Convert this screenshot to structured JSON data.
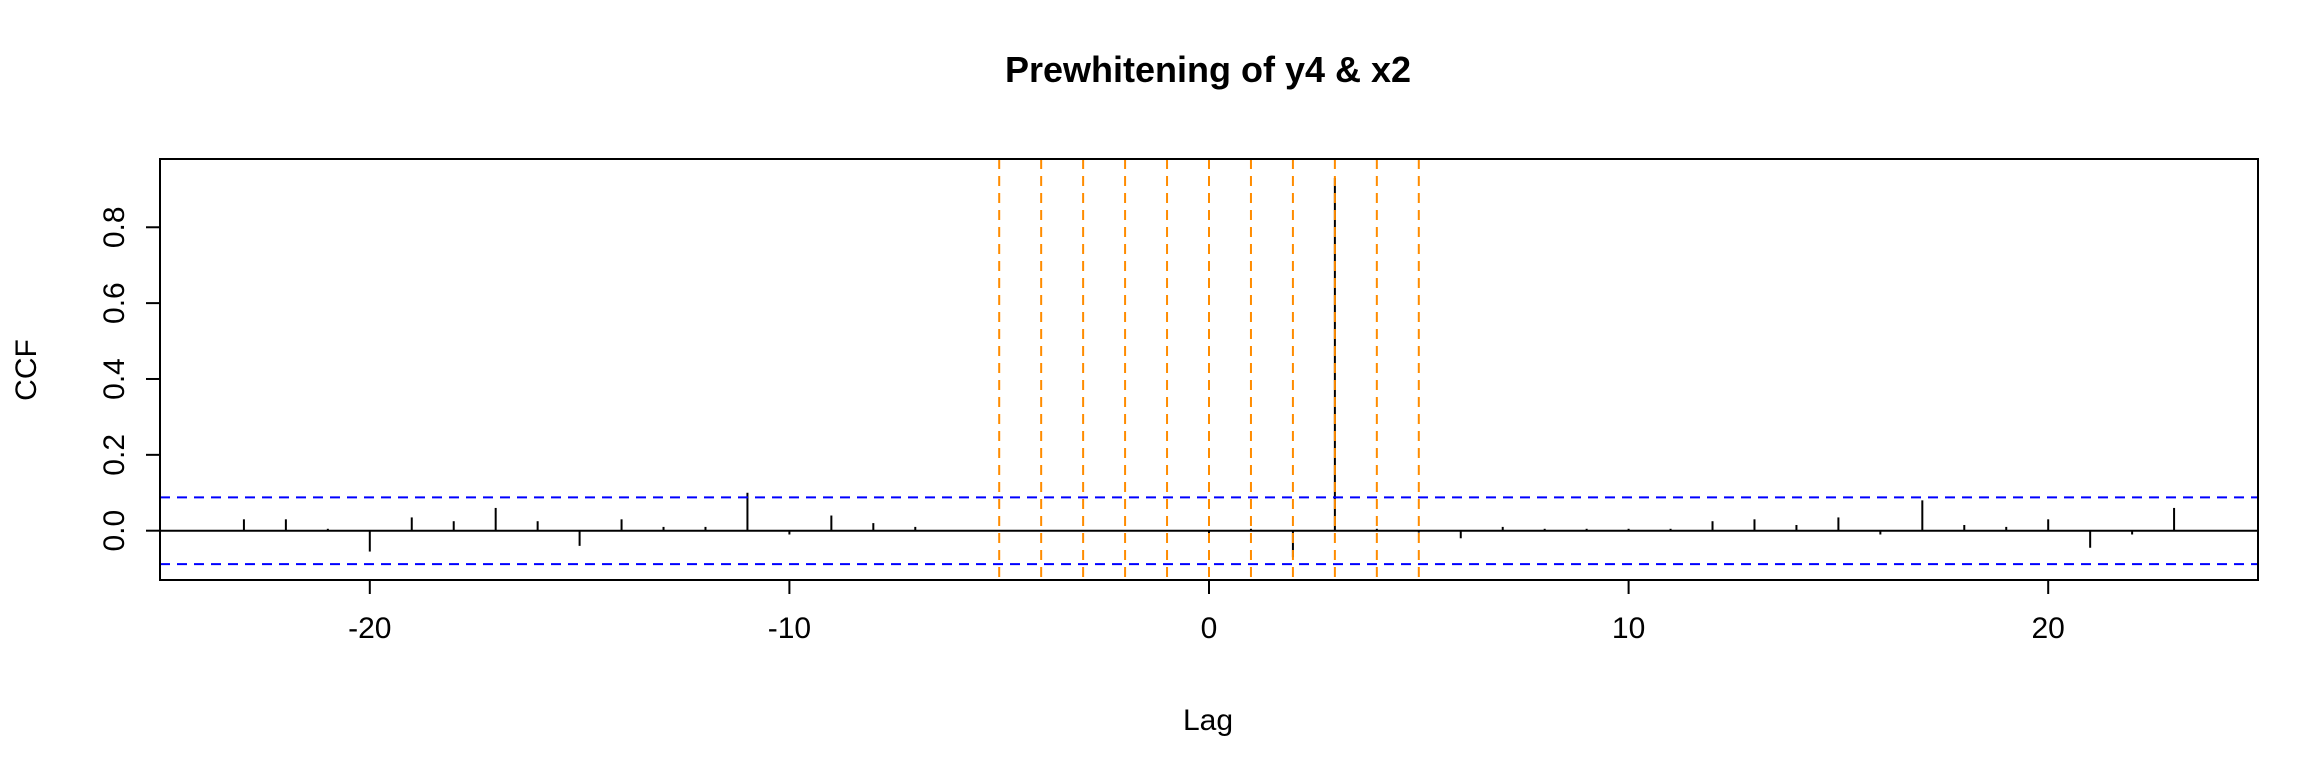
{
  "chart_data": {
    "type": "bar",
    "title": "Prewhitening of y4 & x2",
    "xlabel": "Lag",
    "ylabel": "CCF",
    "xlim": [
      -25,
      25
    ],
    "ylim": [
      -0.13,
      0.98
    ],
    "x_ticks": [
      -20,
      -10,
      0,
      10,
      20
    ],
    "y_ticks": [
      0.0,
      0.2,
      0.4,
      0.6,
      0.8
    ],
    "x_tick_labels": [
      "-20",
      "-10",
      "0",
      "10",
      "20"
    ],
    "y_tick_labels": [
      "0.0",
      "0.2",
      "0.4",
      "0.6",
      "0.8"
    ],
    "lags": [
      -23,
      -22,
      -21,
      -20,
      -19,
      -18,
      -17,
      -16,
      -15,
      -14,
      -13,
      -12,
      -11,
      -10,
      -9,
      -8,
      -7,
      -6,
      -5,
      -4,
      -3,
      -2,
      -1,
      0,
      1,
      2,
      3,
      4,
      5,
      6,
      7,
      8,
      9,
      10,
      11,
      12,
      13,
      14,
      15,
      16,
      17,
      18,
      19,
      20,
      21,
      22,
      23
    ],
    "ccf": [
      0.03,
      0.03,
      0.005,
      -0.055,
      0.035,
      0.025,
      0.06,
      0.025,
      -0.04,
      0.03,
      0.01,
      0.01,
      0.1,
      -0.01,
      0.04,
      0.02,
      0.01,
      0,
      0,
      0,
      0,
      0,
      0,
      -0.01,
      0.005,
      -0.07,
      0.93,
      0.005,
      -0.005,
      -0.02,
      0.01,
      0.005,
      0.005,
      0.005,
      0.005,
      0.025,
      0.03,
      0.015,
      0.035,
      -0.01,
      0.08,
      0.015,
      0.01,
      0.03,
      -0.045,
      -0.01,
      0.06
    ],
    "confidence_bounds": [
      0.088,
      -0.088
    ],
    "highlight_lags": [
      -5,
      -4,
      -3,
      -2,
      -1,
      0,
      1,
      2,
      3,
      4,
      5
    ],
    "colors": {
      "bars": "#000000",
      "confidence": "#0000ff",
      "highlight": "#ff8c00",
      "zero_line": "#000000",
      "frame": "#000000"
    },
    "grid": false,
    "legend": "none"
  }
}
